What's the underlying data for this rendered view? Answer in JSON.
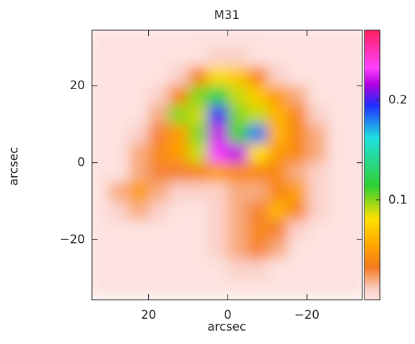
{
  "chart_data": {
    "type": "heatmap",
    "title": "M31",
    "xlabel": "arcsec",
    "ylabel": "arcsec",
    "xlim": [
      34.3,
      -34.0
    ],
    "ylim": [
      -35.6,
      34.4
    ],
    "xticks": [
      20,
      0,
      {
        "value": -20,
        "label": "−20"
      }
    ],
    "yticks": [
      {
        "value": -20,
        "label": "−20"
      },
      0,
      20
    ],
    "x": [
      32.5,
      27.5,
      22.5,
      17.5,
      12.5,
      7.5,
      2.5,
      -2.5,
      -7.5,
      -12.5,
      -17.5,
      -22.5,
      -27.5,
      -32.5
    ],
    "y": [
      32.5,
      27.5,
      22.5,
      17.5,
      12.5,
      7.5,
      2.5,
      -2.5,
      -7.5,
      -12.5,
      -17.5,
      -22.5,
      -27.5,
      -32.5
    ],
    "z": [
      [
        0,
        0,
        0,
        0,
        0,
        0,
        0,
        0,
        0,
        0,
        0,
        0,
        0,
        0
      ],
      [
        0,
        0,
        0,
        0,
        0,
        0,
        0.01,
        0.01,
        0,
        0,
        0,
        0,
        0,
        0
      ],
      [
        0,
        0,
        0,
        0,
        0.01,
        0.04,
        0.08,
        0.07,
        0.04,
        0.01,
        0,
        0,
        0,
        0
      ],
      [
        0,
        0,
        0,
        0.01,
        0.04,
        0.1,
        0.12,
        0.09,
        0.07,
        0.05,
        0.02,
        0,
        0,
        0
      ],
      [
        0,
        0,
        0,
        0.02,
        0.1,
        0.09,
        0.2,
        0.1,
        0.09,
        0.06,
        0.04,
        0.01,
        0,
        0
      ],
      [
        0,
        0,
        0.01,
        0.03,
        0.05,
        0.1,
        0.22,
        0.11,
        0.18,
        0.06,
        0.04,
        0.02,
        0,
        0
      ],
      [
        0,
        0,
        0.02,
        0.04,
        0.05,
        0.09,
        0.23,
        0.22,
        0.08,
        0.05,
        0.04,
        0.02,
        0,
        0
      ],
      [
        0,
        0,
        0.02,
        0.03,
        0.03,
        0.04,
        0.05,
        0.04,
        0.04,
        0.04,
        0.02,
        0.01,
        0,
        0
      ],
      [
        0,
        0.02,
        0.05,
        0.02,
        0.01,
        0.01,
        0.01,
        0.02,
        0.02,
        0.04,
        0.05,
        0.01,
        0,
        0
      ],
      [
        0,
        0.01,
        0.02,
        0.01,
        0,
        0,
        0.01,
        0.02,
        0.03,
        0.06,
        0.04,
        0.01,
        0,
        0
      ],
      [
        0,
        0,
        0,
        0,
        0,
        0,
        0.01,
        0.02,
        0.04,
        0.03,
        0.01,
        0,
        0,
        0
      ],
      [
        0,
        0,
        0,
        0,
        0,
        0,
        0.01,
        0.02,
        0.03,
        0.02,
        0,
        0,
        0,
        0
      ],
      [
        0,
        0,
        0,
        0,
        0,
        0,
        0,
        0.01,
        0.01,
        0,
        0,
        0,
        0,
        0
      ],
      [
        0,
        0,
        0,
        0,
        0,
        0,
        0,
        0,
        0,
        0,
        0,
        0,
        0,
        0
      ]
    ],
    "zlim": [
      0,
      0.27
    ],
    "zticks": [
      0.1,
      0.2
    ],
    "colorscale": [
      [
        0,
        "#fde2df"
      ],
      [
        0.04,
        "#fbcfc6"
      ],
      [
        0.12,
        "#f47a20"
      ],
      [
        0.2,
        "#ffa500"
      ],
      [
        0.3,
        "#ffe000"
      ],
      [
        0.42,
        "#30d030"
      ],
      [
        0.6,
        "#20e0e0"
      ],
      [
        0.72,
        "#2030ff"
      ],
      [
        0.8,
        "#b000e0"
      ],
      [
        0.86,
        "#ff40ff"
      ],
      [
        1,
        "#ff2060"
      ]
    ]
  }
}
